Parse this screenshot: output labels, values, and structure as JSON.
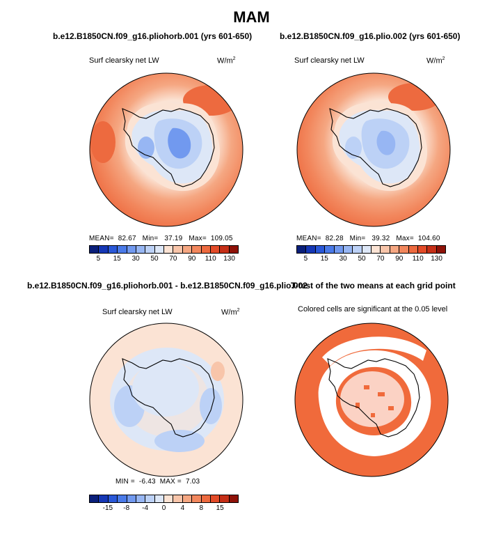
{
  "figure": {
    "title": "MAM"
  },
  "panels": {
    "p1": {
      "title": "b.e12.B1850CN.f09_g16.pliohorb.001 (yrs 601-650)",
      "subtitle": "Surf clearsky net LW",
      "units": "W/m",
      "units_sup": "2",
      "mean_label": "MEAN=",
      "mean": "82.67",
      "min_label": "Min=",
      "min": "37.19",
      "max_label": "Max=",
      "max": "109.05"
    },
    "p2": {
      "title": "b.e12.B1850CN.f09_g16.plio.002 (yrs 601-650)",
      "subtitle": "Surf clearsky net LW",
      "units": "W/m",
      "units_sup": "2",
      "mean_label": "MEAN=",
      "mean": "82.28",
      "min_label": "Min=",
      "min": "39.32",
      "max_label": "Max=",
      "max": "104.60"
    },
    "p3": {
      "title": "b.e12.B1850CN.f09_g16.pliohorb.001 - b.e12.B1850CN.f09_g16.plio.002",
      "subtitle": "Surf clearsky net LW",
      "units": "W/m",
      "units_sup": "2",
      "min_label": "MIN =",
      "min": "-6.43",
      "max_label": "MAX =",
      "max": "7.03"
    },
    "p4": {
      "title": "T-test of the two means at each grid point",
      "subtitle": "Colored cells are significant at the 0.05 level"
    }
  },
  "chart_data": [
    {
      "type": "heatmap",
      "projection": "south-polar-stereographic",
      "title": "b.e12.B1850CN.f09_g16.pliohorb.001 (yrs 601-650)",
      "variable": "Surf clearsky net LW",
      "units": "W/m2",
      "mean": 82.67,
      "min": 37.19,
      "max": 109.05,
      "colorbar": {
        "ticks": [
          "5",
          "15",
          "30",
          "50",
          "70",
          "90",
          "110",
          "130"
        ],
        "colors": [
          "#0a1f7a",
          "#1537b5",
          "#2a58d8",
          "#4a7ae8",
          "#7199ef",
          "#97b6f3",
          "#bcd1f6",
          "#dde7f7",
          "#fbe3d4",
          "#f8c5aa",
          "#f5a782",
          "#f2875d",
          "#ed6a3f",
          "#e34b28",
          "#c52f17",
          "#8e1208"
        ]
      }
    },
    {
      "type": "heatmap",
      "projection": "south-polar-stereographic",
      "title": "b.e12.B1850CN.f09_g16.plio.002 (yrs 601-650)",
      "variable": "Surf clearsky net LW",
      "units": "W/m2",
      "mean": 82.28,
      "min": 39.32,
      "max": 104.6,
      "colorbar": {
        "ticks": [
          "5",
          "15",
          "30",
          "50",
          "70",
          "90",
          "110",
          "130"
        ],
        "colors": [
          "#0a1f7a",
          "#1537b5",
          "#2a58d8",
          "#4a7ae8",
          "#7199ef",
          "#97b6f3",
          "#bcd1f6",
          "#dde7f7",
          "#fbe3d4",
          "#f8c5aa",
          "#f5a782",
          "#f2875d",
          "#ed6a3f",
          "#e34b28",
          "#c52f17",
          "#8e1208"
        ]
      }
    },
    {
      "type": "heatmap",
      "projection": "south-polar-stereographic",
      "title": "b.e12.B1850CN.f09_g16.pliohorb.001 - b.e12.B1850CN.f09_g16.plio.002",
      "variable": "Surf clearsky net LW",
      "units": "W/m2",
      "min": -6.43,
      "max": 7.03,
      "colorbar": {
        "ticks": [
          "-15",
          "-8",
          "-4",
          "0",
          "4",
          "8",
          "15"
        ],
        "colors": [
          "#0a1f7a",
          "#1537b5",
          "#2a58d8",
          "#4a7ae8",
          "#7199ef",
          "#97b6f3",
          "#bcd1f6",
          "#dde7f7",
          "#fbe3d4",
          "#f8c5aa",
          "#f5a782",
          "#f2875d",
          "#ed6a3f",
          "#e34b28",
          "#c52f17",
          "#8e1208"
        ]
      }
    },
    {
      "type": "heatmap",
      "projection": "south-polar-stereographic",
      "title": "T-test of the two means at each grid point",
      "variable": "Colored cells are significant at the 0.05 level",
      "significance_level": 0.05,
      "colors": {
        "significant": "#f06a3b",
        "not_significant": "#ffffff"
      }
    }
  ],
  "colors": {
    "ocean_warm": "#f2875d",
    "ocean_hot": "#ed6a3f",
    "coast": "#f8c5aa",
    "shelf": "#fbe3d4",
    "ice": "#dde7f7",
    "ice_cold": "#bcd1f6",
    "ice_colder": "#97b6f3",
    "ice_core": "#7199ef",
    "diff_pos": "#fbe3d4",
    "diff_neg": "#bcd1f6",
    "ttest_fill": "#f06a3b"
  }
}
